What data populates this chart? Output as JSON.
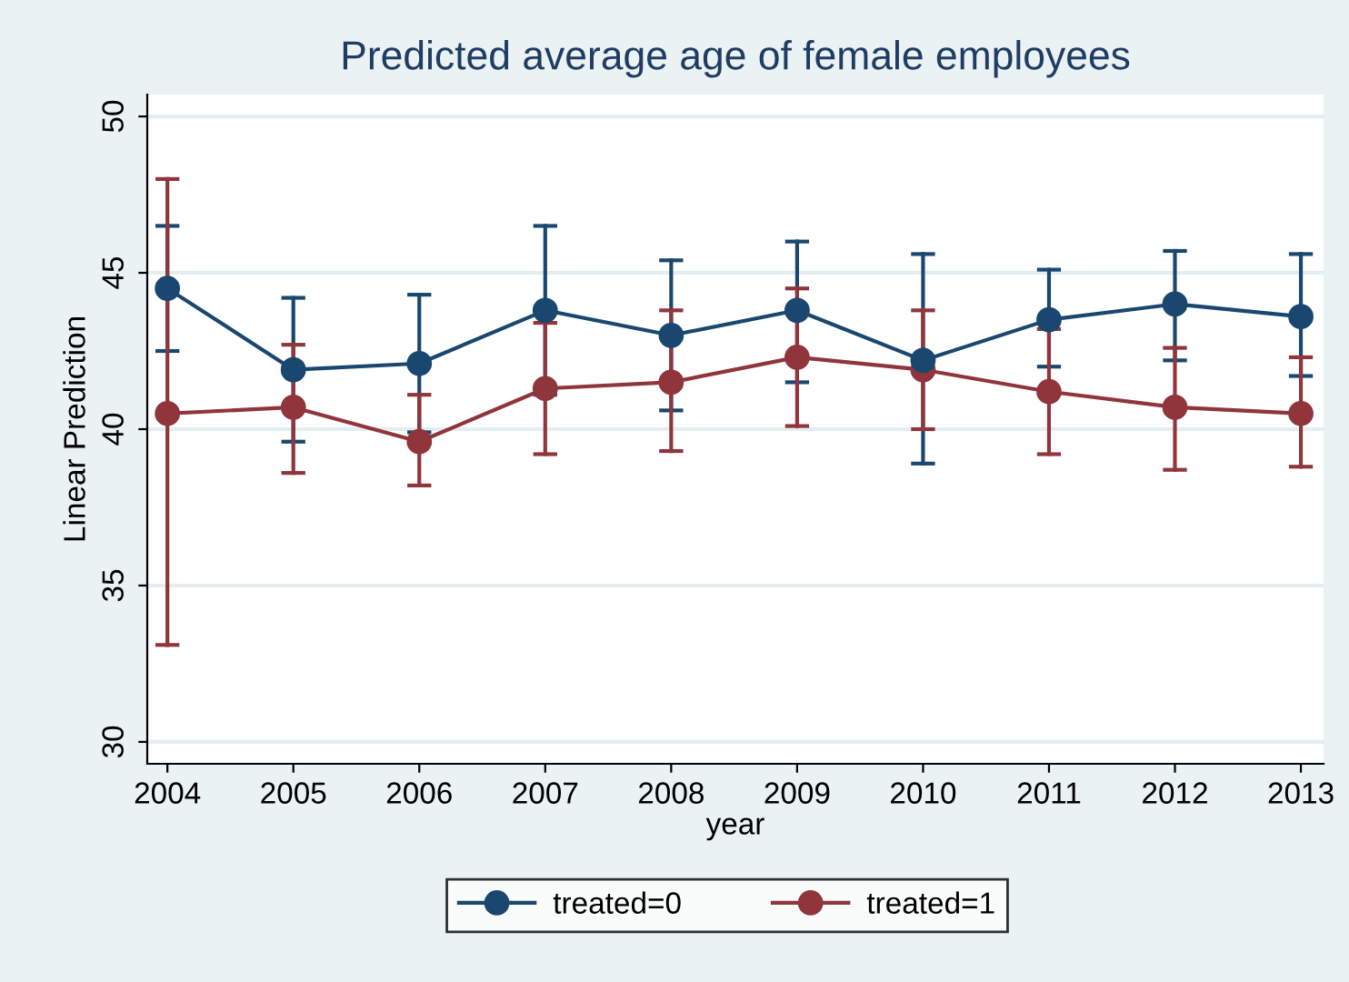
{
  "chart_data": {
    "type": "line",
    "title": "Predicted average age of female employees",
    "xlabel": "year",
    "ylabel": "Linear Prediction",
    "categories": [
      "2004",
      "2005",
      "2006",
      "2007",
      "2008",
      "2009",
      "2010",
      "2011",
      "2012",
      "2013"
    ],
    "series": [
      {
        "name": "treated=0",
        "color": "#1a476f",
        "values": [
          44.5,
          41.9,
          42.1,
          43.8,
          43.0,
          43.8,
          42.2,
          43.5,
          44.0,
          43.6
        ],
        "errors": [
          [
            42.5,
            46.5
          ],
          [
            39.6,
            44.2
          ],
          [
            39.9,
            44.3
          ],
          [
            41.1,
            46.5
          ],
          [
            40.6,
            45.4
          ],
          [
            41.5,
            46.0
          ],
          [
            38.9,
            45.6
          ],
          [
            42.0,
            45.1
          ],
          [
            42.2,
            45.7
          ],
          [
            41.7,
            45.6
          ]
        ]
      },
      {
        "name": "treated=1",
        "color": "#90353b",
        "values": [
          40.5,
          40.7,
          39.6,
          41.3,
          41.5,
          42.3,
          41.9,
          41.2,
          40.7,
          40.5
        ],
        "errors": [
          [
            33.1,
            48.0
          ],
          [
            38.6,
            42.7
          ],
          [
            38.2,
            41.1
          ],
          [
            39.2,
            43.4
          ],
          [
            39.3,
            43.8
          ],
          [
            40.1,
            44.5
          ],
          [
            40.0,
            43.8
          ],
          [
            39.2,
            43.2
          ],
          [
            38.7,
            42.6
          ],
          [
            38.8,
            42.3
          ]
        ]
      }
    ],
    "ylim": [
      29.3,
      50.7
    ],
    "yticks": [
      30,
      35,
      40,
      45,
      50
    ],
    "grid": "y",
    "legend": "bottom",
    "marker": "circle",
    "line_style": "solid"
  }
}
